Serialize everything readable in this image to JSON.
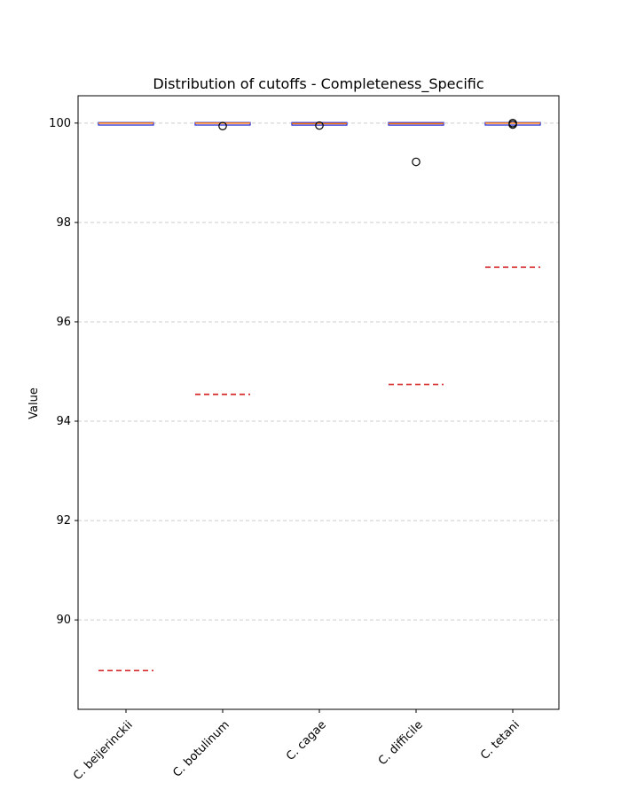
{
  "chart_data": {
    "type": "box",
    "title": "Distribution of cutoffs - Completeness_Specific",
    "ylabel": "Value",
    "xlabel": "",
    "ylim": [
      88.2,
      100.55
    ],
    "yticks": [
      90,
      92,
      94,
      96,
      98,
      100
    ],
    "ytick_labels": [
      "90",
      "92",
      "94",
      "96",
      "98",
      "100"
    ],
    "grid": "y-dashed",
    "categories": [
      "C. beijerinckii",
      "C. botulinum",
      "C. cagae",
      "C. difficile",
      "C. tetani"
    ],
    "boxes": [
      {
        "category": "C. beijerinckii",
        "q1": 99.99,
        "median": 100.0,
        "q3": 100.0,
        "whisker_low": 99.99,
        "whisker_high": 100.0,
        "outliers": [],
        "cutoff": 88.98
      },
      {
        "category": "C. botulinum",
        "q1": 99.99,
        "median": 100.0,
        "q3": 100.0,
        "whisker_low": 99.99,
        "whisker_high": 100.0,
        "outliers": [
          99.94
        ],
        "cutoff": 94.54
      },
      {
        "category": "C. cagae",
        "q1": 99.97,
        "median": 99.99,
        "q3": 100.0,
        "whisker_low": 99.97,
        "whisker_high": 100.0,
        "outliers": [
          99.95
        ],
        "cutoff": 99.97
      },
      {
        "category": "C. difficile",
        "q1": 99.97,
        "median": 99.99,
        "q3": 100.0,
        "whisker_low": 99.97,
        "whisker_high": 100.0,
        "outliers": [
          99.22
        ],
        "cutoff": 94.74
      },
      {
        "category": "C. tetani",
        "q1": 99.99,
        "median": 100.0,
        "q3": 100.0,
        "whisker_low": 99.99,
        "whisker_high": 100.0,
        "outliers": [
          99.97,
          100.0
        ],
        "cutoff": 97.1
      }
    ],
    "colors": {
      "box_edge": "#1f1fcf",
      "median": "#ff7f0e",
      "cutoff_line": "#d62728",
      "outlier_edge": "#000000",
      "grid": "#cccccc",
      "axes": "#000000"
    }
  }
}
